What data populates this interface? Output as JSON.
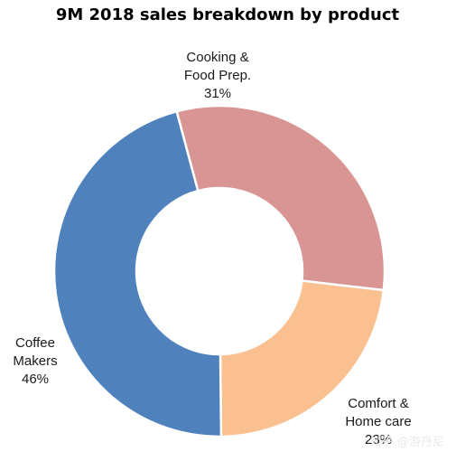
{
  "chart_data": {
    "type": "pie",
    "variant": "donut",
    "title": "9M 2018 sales breakdown by product",
    "slices": [
      {
        "label": "Cooking & Food Prep.",
        "label_lines": [
          "Cooking &",
          "Food Prep."
        ],
        "value": 31,
        "value_label": "31%",
        "color": "#d99594"
      },
      {
        "label": "Comfort & Home care",
        "label_lines": [
          "Comfort &",
          "Home care"
        ],
        "value": 23,
        "value_label": "23%",
        "color": "#fac090"
      },
      {
        "label": "Coffee Makers",
        "label_lines": [
          "Coffee",
          "Makers"
        ],
        "value": 46,
        "value_label": "46%",
        "color": "#4f81bd"
      }
    ],
    "legend": "none"
  },
  "watermark": "知乎 @游丹尼"
}
